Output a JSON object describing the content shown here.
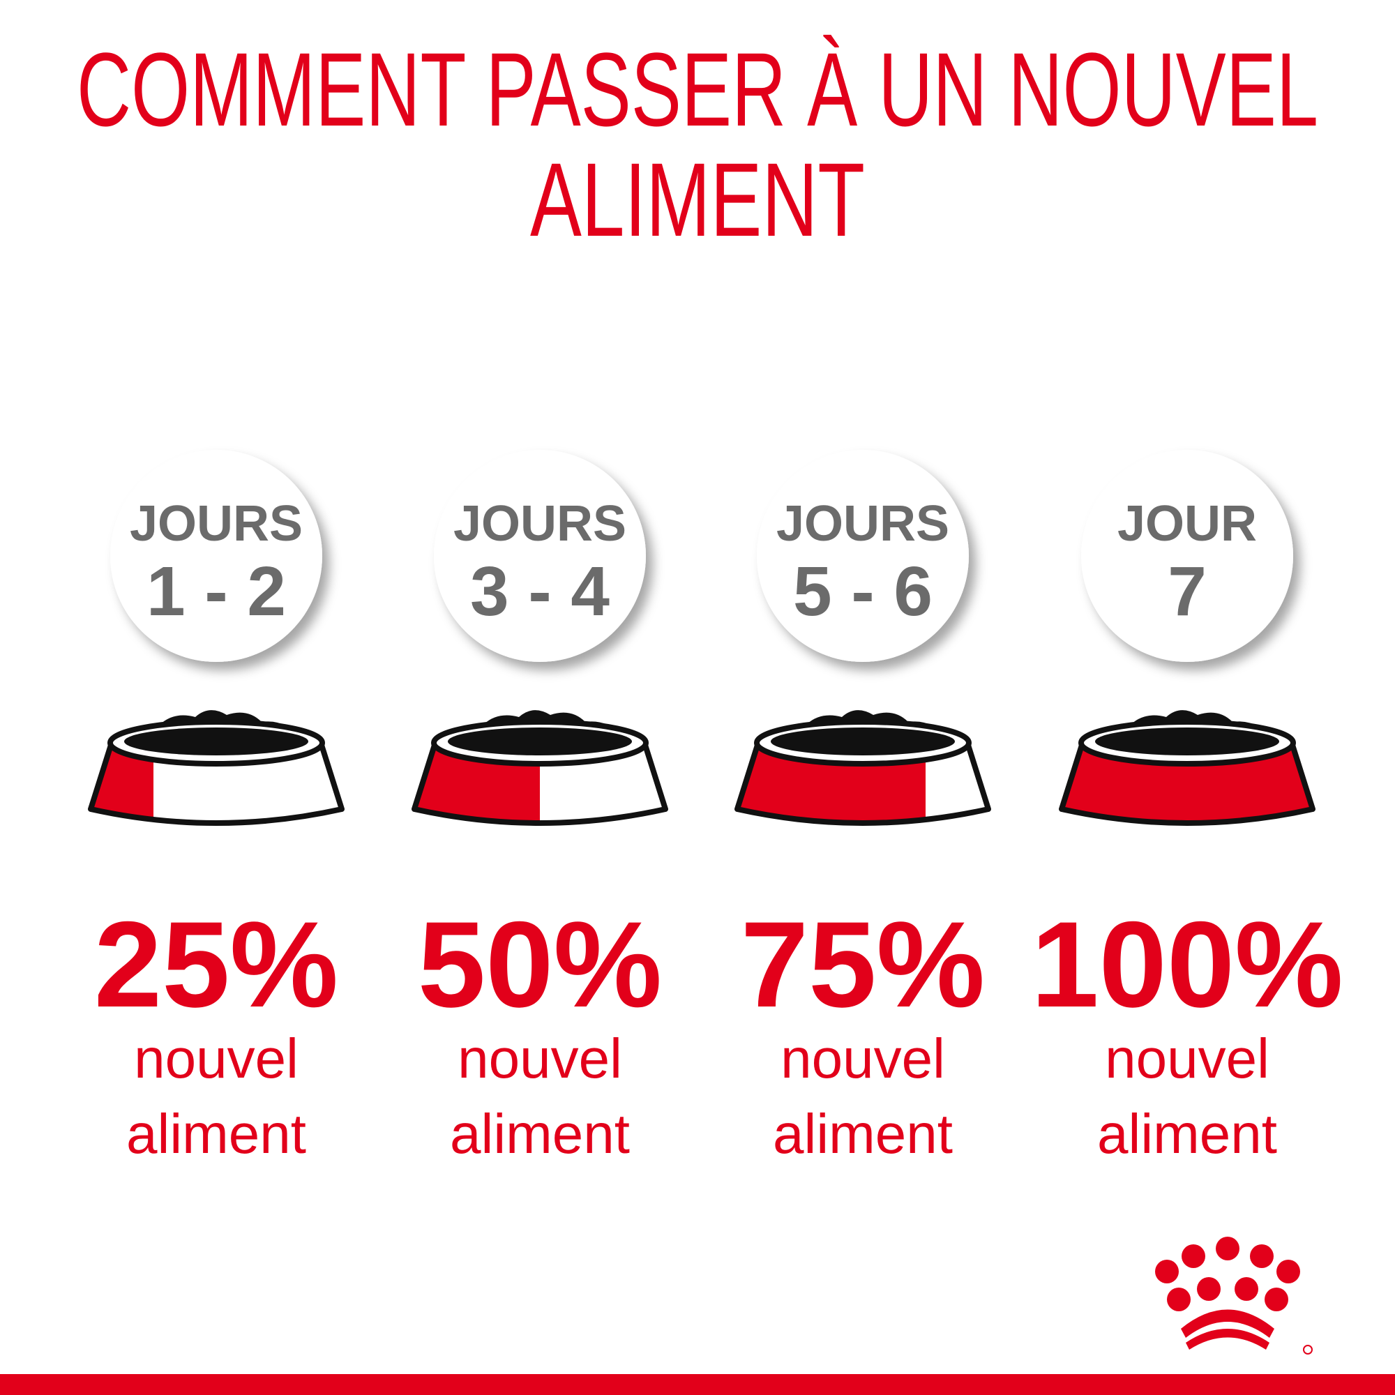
{
  "header": {
    "title_lines": [
      "COMMENT PASSER À UN NOUVEL",
      "ALIMENT"
    ]
  },
  "steps": [
    {
      "day_label": "JOURS",
      "days": "1 - 2",
      "new_food_percent": 25,
      "percent_label": "25%",
      "caption_lines": [
        "nouvel",
        "aliment"
      ]
    },
    {
      "day_label": "JOURS",
      "days": "3 - 4",
      "new_food_percent": 50,
      "percent_label": "50%",
      "caption_lines": [
        "nouvel",
        "aliment"
      ]
    },
    {
      "day_label": "JOURS",
      "days": "5 - 6",
      "new_food_percent": 75,
      "percent_label": "75%",
      "caption_lines": [
        "nouvel",
        "aliment"
      ]
    },
    {
      "day_label": "JOUR",
      "days": "7",
      "new_food_percent": 100,
      "percent_label": "100%",
      "caption_lines": [
        "nouvel",
        "aliment"
      ]
    }
  ]
}
